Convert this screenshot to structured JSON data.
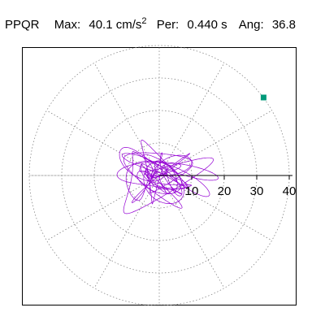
{
  "header": {
    "station": "PPQR",
    "max_label": "Max:",
    "max_value": "40.1",
    "max_unit": "cm/s",
    "max_unit_exp": "2",
    "per_label": "Per:",
    "per_value": "0.440 s",
    "ang_label": "Ang:",
    "ang_value": "36.8"
  },
  "colors": {
    "trace": "#9400d3",
    "marker": "#00997a",
    "grid": "#888888",
    "axis": "#000000"
  },
  "chart_data": {
    "type": "line",
    "title": "",
    "xlabel": "",
    "ylabel": "",
    "polar": true,
    "radial_ticks": [
      10,
      20,
      30,
      40
    ],
    "radial_tick_labels": [
      "10",
      "20",
      "30",
      "40"
    ],
    "rmax": 40,
    "grid": true,
    "trace_summary": {
      "peak_value": 40.1,
      "peak_angle_deg": 36.8
    },
    "peak_point": {
      "x": 32.1,
      "y": 24.0
    }
  }
}
